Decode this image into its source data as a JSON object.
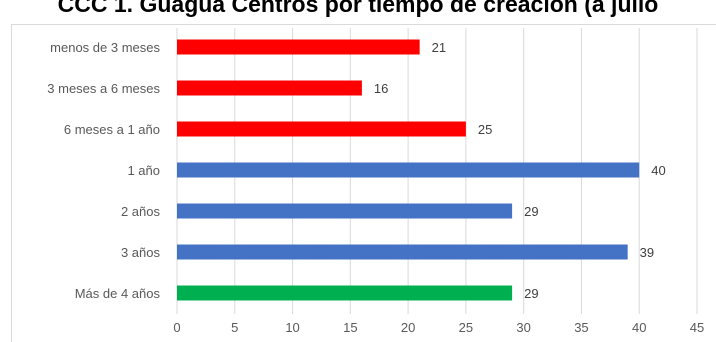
{
  "chart_data": {
    "type": "bar",
    "orientation": "horizontal",
    "title": "CCC 1. Guagua Centros por tiempo de creación (a julio",
    "categories": [
      "menos de 3 meses",
      "3 meses a 6 meses",
      "6 meses a 1 año",
      "1 año",
      "2 años",
      "3 años",
      "Más de 4 años"
    ],
    "values": [
      21,
      16,
      25,
      40,
      29,
      39,
      29
    ],
    "colors": [
      "#ff0000",
      "#ff0000",
      "#ff0000",
      "#4472c4",
      "#4472c4",
      "#4472c4",
      "#00b050"
    ],
    "xlim": [
      0,
      45
    ],
    "xticks": [
      0,
      5,
      10,
      15,
      20,
      25,
      30,
      35,
      40,
      45
    ],
    "grid": true,
    "data_labels": true,
    "legend": "none"
  }
}
